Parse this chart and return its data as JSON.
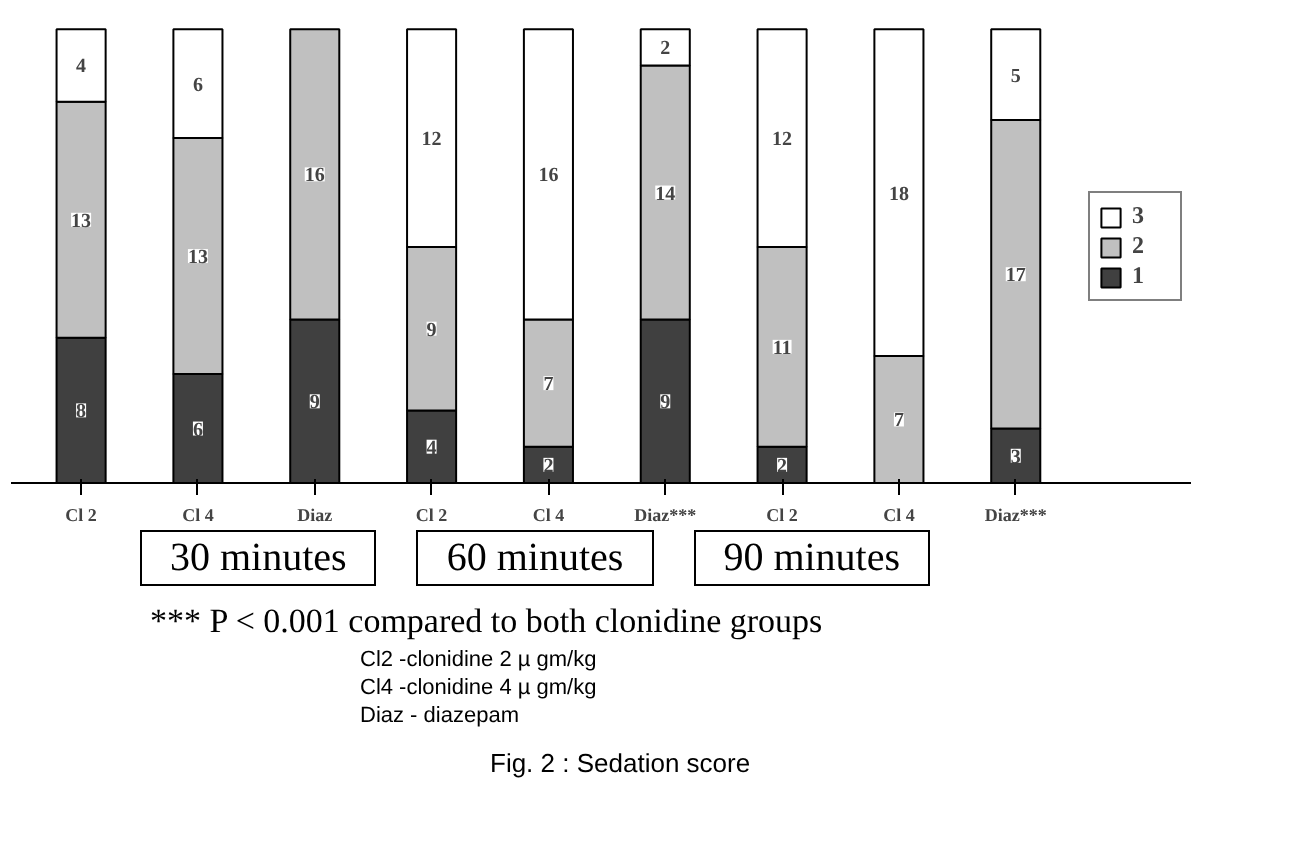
{
  "chart_data": {
    "type": "bar",
    "stacked": true,
    "data_labels": true,
    "legend": "right",
    "grid": false,
    "title": "Fig. 2 : Sedation score",
    "categories": [
      "Cl 2",
      "Cl 4",
      "Diaz",
      "Cl 2",
      "Cl 4",
      "Diaz***",
      "Cl 2",
      "Cl 4",
      "Diaz***"
    ],
    "series": [
      {
        "name": "1",
        "color": "#404040",
        "values": [
          8,
          6,
          9,
          4,
          2,
          9,
          2,
          null,
          3
        ]
      },
      {
        "name": "2",
        "color": "#c0c0c0",
        "values": [
          13,
          13,
          16,
          9,
          7,
          14,
          11,
          7,
          17
        ]
      },
      {
        "name": "3",
        "color": "#ffffff",
        "values": [
          4,
          6,
          null,
          12,
          16,
          2,
          12,
          18,
          5
        ]
      }
    ],
    "annotations": [
      "30 minutes",
      "60 minutes",
      "90 minutes",
      "*** P < 0.001 compared to both clonidine groups",
      "Cl2 -clonidine 2 µ gm/kg",
      "Cl4 -clonidine 4 µ gm/kg",
      "Diaz - diazepam"
    ]
  }
}
